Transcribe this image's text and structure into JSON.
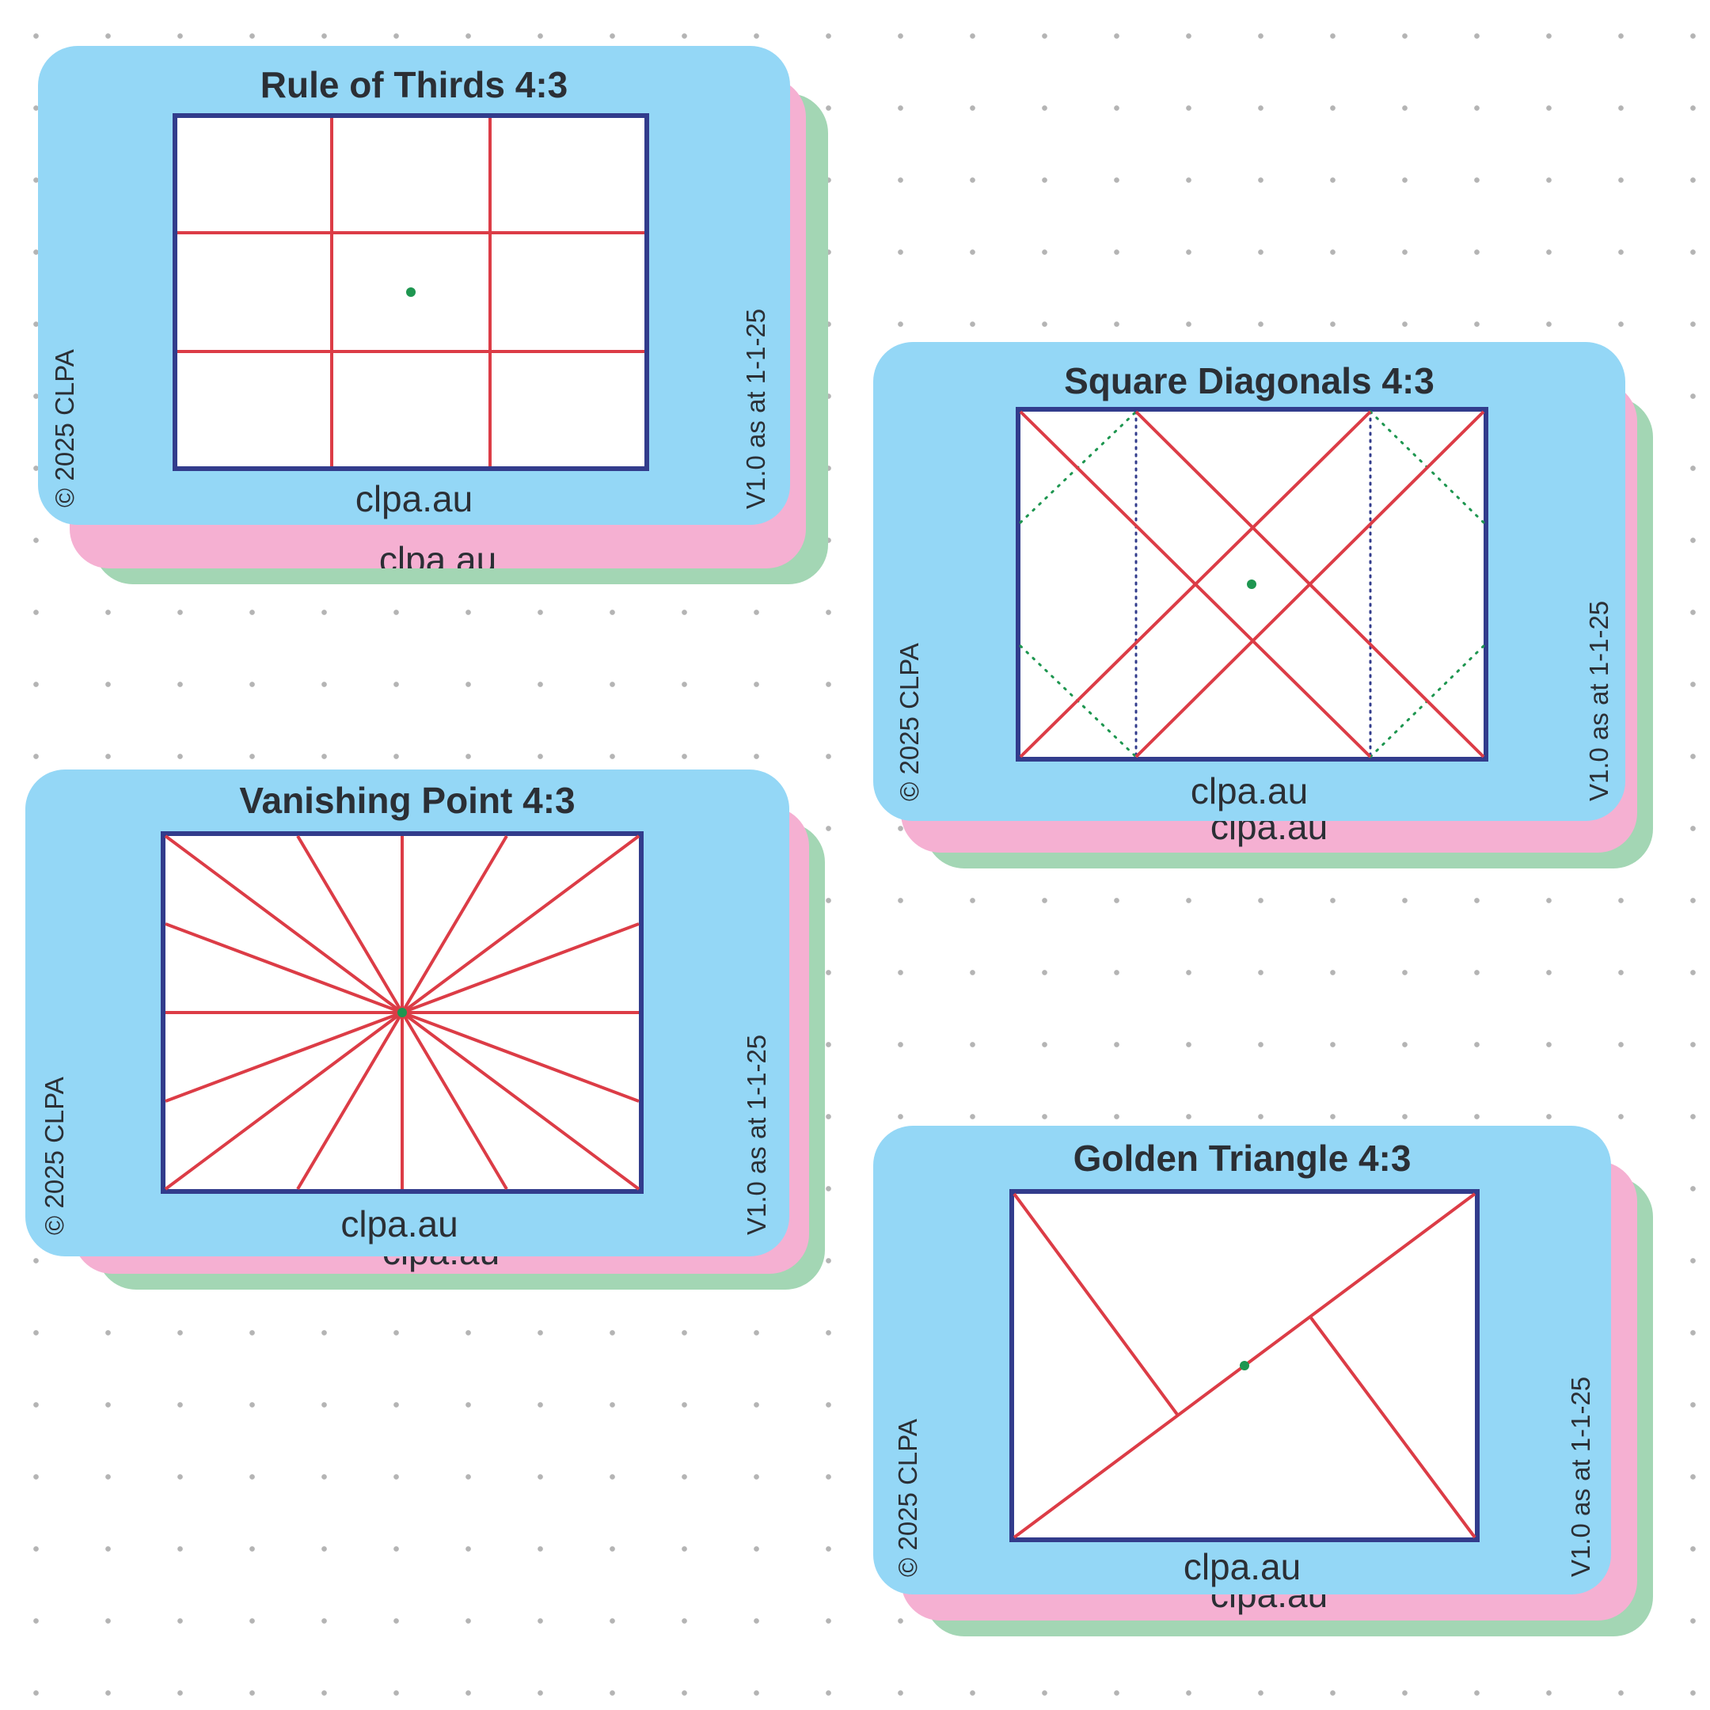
{
  "cards": [
    {
      "id": "rule-of-thirds",
      "title": "Rule of Thirds 4:3",
      "site": "clpa.au",
      "copyright": "© 2025 CLPA",
      "version": "V1.0 as at 1-1-25"
    },
    {
      "id": "square-diagonals",
      "title": "Square Diagonals 4:3",
      "site": "clpa.au",
      "copyright": "© 2025 CLPA",
      "version": "V1.0 as at 1-1-25"
    },
    {
      "id": "vanishing-point",
      "title": "Vanishing Point 4:3",
      "site": "clpa.au",
      "copyright": "© 2025 CLPA",
      "version": "V1.0 as at 1-1-25"
    },
    {
      "id": "golden-triangle",
      "title": "Golden Triangle 4:3",
      "site": "clpa.au",
      "copyright": "© 2025 CLPA",
      "version": "V1.0 as at 1-1-25"
    }
  ],
  "colors": {
    "card_blue": "#94d7f6",
    "card_pink": "#f5b0d2",
    "card_green": "#a3d6b4",
    "frame_border": "#323c8c",
    "guide_red": "#dc3c46",
    "center_dot": "#1e9650",
    "guide_dotted_green": "#1e9650",
    "guide_dotted_navy": "#323c8c",
    "background_dot": "#b4b4b4"
  }
}
